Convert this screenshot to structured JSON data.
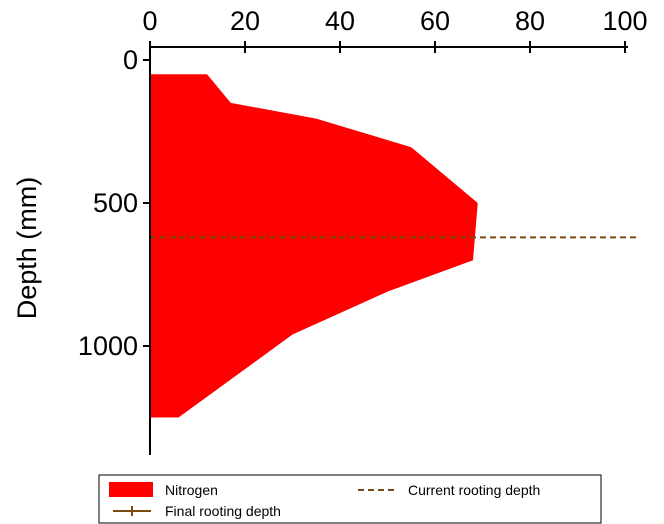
{
  "chart_data": {
    "type": "area",
    "orientation": "vertical-profile",
    "xlim": [
      0,
      100
    ],
    "xticks": [
      0,
      20,
      40,
      60,
      80,
      100
    ],
    "ylim": [
      0,
      1300
    ],
    "yticks": [
      0,
      500,
      1000
    ],
    "ylabel": "Depth (mm)",
    "xlabel": "",
    "title": "",
    "legend_position": "bottom",
    "series": [
      {
        "name": "Nitrogen",
        "kind": "area",
        "color": "#ff0000",
        "points": [
          {
            "x": 0,
            "y": 50
          },
          {
            "x": 12,
            "y": 50
          },
          {
            "x": 17,
            "y": 150
          },
          {
            "x": 35,
            "y": 205
          },
          {
            "x": 55,
            "y": 305
          },
          {
            "x": 69,
            "y": 500
          },
          {
            "x": 68,
            "y": 700
          },
          {
            "x": 50,
            "y": 810
          },
          {
            "x": 30,
            "y": 960
          },
          {
            "x": 6,
            "y": 1250
          },
          {
            "x": 0,
            "y": 1250
          }
        ]
      },
      {
        "name": "Current rooting depth",
        "kind": "dashed-line",
        "color": "#7a4a10",
        "depth": 620
      },
      {
        "name": "Final rooting depth",
        "kind": "solid-line",
        "color": "#7a4a10"
      }
    ]
  }
}
